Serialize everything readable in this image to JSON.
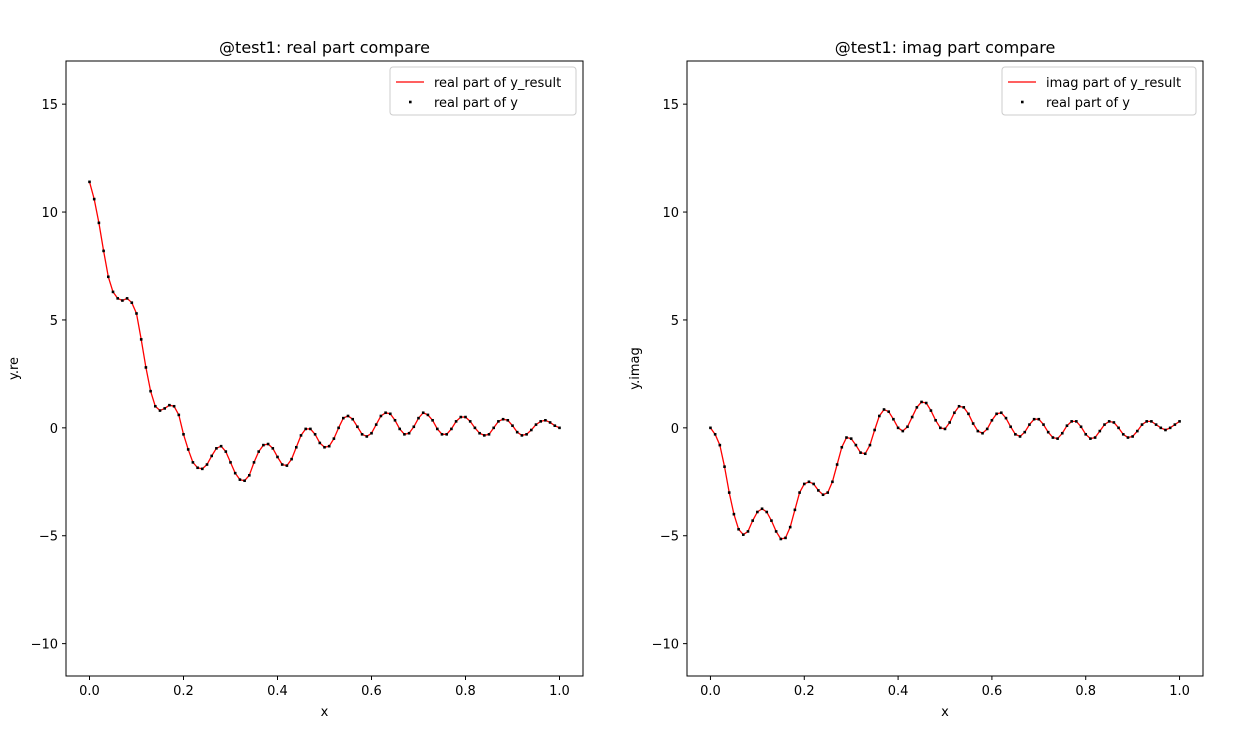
{
  "chart_data": [
    {
      "type": "line",
      "title": "@test1: real part compare",
      "xlabel": "x",
      "ylabel": "y.re",
      "xlim": [
        -0.05,
        1.05
      ],
      "ylim": [
        -11.5,
        17.0
      ],
      "xticks": [
        0.0,
        0.2,
        0.4,
        0.6,
        0.8,
        1.0
      ],
      "xtick_labels": [
        "0.0",
        "0.2",
        "0.4",
        "0.6",
        "0.8",
        "1.0"
      ],
      "yticks": [
        -10,
        -5,
        0,
        5,
        10,
        15
      ],
      "ytick_labels": [
        "−10",
        "−5",
        "0",
        "5",
        "10",
        "15"
      ],
      "grid": false,
      "legend_position": "top-right",
      "colors": {
        "line": "#ff0000",
        "scatter": "#000000"
      },
      "series": [
        {
          "name": "real part of y_result",
          "kind": "line",
          "x": [
            0.0,
            0.01,
            0.02,
            0.03,
            0.04,
            0.05,
            0.06,
            0.07,
            0.08,
            0.09,
            0.1,
            0.11,
            0.12,
            0.13,
            0.14,
            0.15,
            0.16,
            0.17,
            0.18,
            0.19,
            0.2,
            0.21,
            0.22,
            0.23,
            0.24,
            0.25,
            0.26,
            0.27,
            0.28,
            0.29,
            0.3,
            0.31,
            0.32,
            0.33,
            0.34,
            0.35,
            0.36,
            0.37,
            0.38,
            0.39,
            0.4,
            0.41,
            0.42,
            0.43,
            0.44,
            0.45,
            0.46,
            0.47,
            0.48,
            0.49,
            0.5,
            0.51,
            0.52,
            0.53,
            0.54,
            0.55,
            0.56,
            0.57,
            0.58,
            0.59,
            0.6,
            0.61,
            0.62,
            0.63,
            0.64,
            0.65,
            0.66,
            0.67,
            0.68,
            0.69,
            0.7,
            0.71,
            0.72,
            0.73,
            0.74,
            0.75,
            0.76,
            0.77,
            0.78,
            0.79,
            0.8,
            0.81,
            0.82,
            0.83,
            0.84,
            0.85,
            0.86,
            0.87,
            0.88,
            0.89,
            0.9,
            0.91,
            0.92,
            0.93,
            0.94,
            0.95,
            0.96,
            0.97,
            0.98,
            0.99,
            1.0
          ],
          "y": [
            11.4,
            10.6,
            9.5,
            8.2,
            7.0,
            6.3,
            6.0,
            5.9,
            6.0,
            5.8,
            5.3,
            4.1,
            2.8,
            1.7,
            1.0,
            0.8,
            0.9,
            1.05,
            1.0,
            0.6,
            -0.3,
            -1.0,
            -1.6,
            -1.85,
            -1.9,
            -1.7,
            -1.3,
            -0.95,
            -0.85,
            -1.1,
            -1.6,
            -2.1,
            -2.4,
            -2.45,
            -2.2,
            -1.6,
            -1.1,
            -0.8,
            -0.75,
            -0.95,
            -1.35,
            -1.7,
            -1.75,
            -1.45,
            -0.9,
            -0.35,
            -0.05,
            -0.05,
            -0.3,
            -0.7,
            -0.9,
            -0.85,
            -0.5,
            0.0,
            0.45,
            0.55,
            0.4,
            0.05,
            -0.3,
            -0.4,
            -0.25,
            0.15,
            0.55,
            0.7,
            0.65,
            0.35,
            -0.05,
            -0.3,
            -0.25,
            0.05,
            0.45,
            0.7,
            0.6,
            0.35,
            -0.05,
            -0.3,
            -0.3,
            -0.05,
            0.3,
            0.5,
            0.5,
            0.3,
            0.0,
            -0.25,
            -0.35,
            -0.3,
            0.0,
            0.3,
            0.4,
            0.35,
            0.1,
            -0.2,
            -0.35,
            -0.3,
            -0.1,
            0.15,
            0.3,
            0.35,
            0.25,
            0.1,
            0.0
          ]
        },
        {
          "name": "real part of y",
          "kind": "scatter",
          "x": [
            0.0,
            0.01,
            0.02,
            0.03,
            0.04,
            0.05,
            0.06,
            0.07,
            0.08,
            0.09,
            0.1,
            0.11,
            0.12,
            0.13,
            0.14,
            0.15,
            0.16,
            0.17,
            0.18,
            0.19,
            0.2,
            0.21,
            0.22,
            0.23,
            0.24,
            0.25,
            0.26,
            0.27,
            0.28,
            0.29,
            0.3,
            0.31,
            0.32,
            0.33,
            0.34,
            0.35,
            0.36,
            0.37,
            0.38,
            0.39,
            0.4,
            0.41,
            0.42,
            0.43,
            0.44,
            0.45,
            0.46,
            0.47,
            0.48,
            0.49,
            0.5,
            0.51,
            0.52,
            0.53,
            0.54,
            0.55,
            0.56,
            0.57,
            0.58,
            0.59,
            0.6,
            0.61,
            0.62,
            0.63,
            0.64,
            0.65,
            0.66,
            0.67,
            0.68,
            0.69,
            0.7,
            0.71,
            0.72,
            0.73,
            0.74,
            0.75,
            0.76,
            0.77,
            0.78,
            0.79,
            0.8,
            0.81,
            0.82,
            0.83,
            0.84,
            0.85,
            0.86,
            0.87,
            0.88,
            0.89,
            0.9,
            0.91,
            0.92,
            0.93,
            0.94,
            0.95,
            0.96,
            0.97,
            0.98,
            0.99,
            1.0
          ],
          "y": [
            11.4,
            10.6,
            9.5,
            8.2,
            7.0,
            6.3,
            6.0,
            5.9,
            6.0,
            5.8,
            5.3,
            4.1,
            2.8,
            1.7,
            1.0,
            0.8,
            0.9,
            1.05,
            1.0,
            0.6,
            -0.3,
            -1.0,
            -1.6,
            -1.85,
            -1.9,
            -1.7,
            -1.3,
            -0.95,
            -0.85,
            -1.1,
            -1.6,
            -2.1,
            -2.4,
            -2.45,
            -2.2,
            -1.6,
            -1.1,
            -0.8,
            -0.75,
            -0.95,
            -1.35,
            -1.7,
            -1.75,
            -1.45,
            -0.9,
            -0.35,
            -0.05,
            -0.05,
            -0.3,
            -0.7,
            -0.9,
            -0.85,
            -0.5,
            0.0,
            0.45,
            0.55,
            0.4,
            0.05,
            -0.3,
            -0.4,
            -0.25,
            0.15,
            0.55,
            0.7,
            0.65,
            0.35,
            -0.05,
            -0.3,
            -0.25,
            0.05,
            0.45,
            0.7,
            0.6,
            0.35,
            -0.05,
            -0.3,
            -0.3,
            -0.05,
            0.3,
            0.5,
            0.5,
            0.3,
            0.0,
            -0.25,
            -0.35,
            -0.3,
            0.0,
            0.3,
            0.4,
            0.35,
            0.1,
            -0.2,
            -0.35,
            -0.3,
            -0.1,
            0.15,
            0.3,
            0.35,
            0.25,
            0.1,
            0.0
          ]
        }
      ]
    },
    {
      "type": "line",
      "title": "@test1: imag part compare",
      "xlabel": "x",
      "ylabel": "y.imag",
      "xlim": [
        -0.05,
        1.05
      ],
      "ylim": [
        -11.5,
        17.0
      ],
      "xticks": [
        0.0,
        0.2,
        0.4,
        0.6,
        0.8,
        1.0
      ],
      "xtick_labels": [
        "0.0",
        "0.2",
        "0.4",
        "0.6",
        "0.8",
        "1.0"
      ],
      "yticks": [
        -10,
        -5,
        0,
        5,
        10,
        15
      ],
      "ytick_labels": [
        "−10",
        "−5",
        "0",
        "5",
        "10",
        "15"
      ],
      "grid": false,
      "legend_position": "top-right",
      "colors": {
        "line": "#ff0000",
        "scatter": "#000000"
      },
      "series": [
        {
          "name": "imag part of y_result",
          "kind": "line",
          "x": [
            0.0,
            0.01,
            0.02,
            0.03,
            0.04,
            0.05,
            0.06,
            0.07,
            0.08,
            0.09,
            0.1,
            0.11,
            0.12,
            0.13,
            0.14,
            0.15,
            0.16,
            0.17,
            0.18,
            0.19,
            0.2,
            0.21,
            0.22,
            0.23,
            0.24,
            0.25,
            0.26,
            0.27,
            0.28,
            0.29,
            0.3,
            0.31,
            0.32,
            0.33,
            0.34,
            0.35,
            0.36,
            0.37,
            0.38,
            0.39,
            0.4,
            0.41,
            0.42,
            0.43,
            0.44,
            0.45,
            0.46,
            0.47,
            0.48,
            0.49,
            0.5,
            0.51,
            0.52,
            0.53,
            0.54,
            0.55,
            0.56,
            0.57,
            0.58,
            0.59,
            0.6,
            0.61,
            0.62,
            0.63,
            0.64,
            0.65,
            0.66,
            0.67,
            0.68,
            0.69,
            0.7,
            0.71,
            0.72,
            0.73,
            0.74,
            0.75,
            0.76,
            0.77,
            0.78,
            0.79,
            0.8,
            0.81,
            0.82,
            0.83,
            0.84,
            0.85,
            0.86,
            0.87,
            0.88,
            0.89,
            0.9,
            0.91,
            0.92,
            0.93,
            0.94,
            0.95,
            0.96,
            0.97,
            0.98,
            0.99,
            1.0
          ],
          "y": [
            0.0,
            -0.3,
            -0.8,
            -1.8,
            -3.0,
            -4.0,
            -4.7,
            -4.95,
            -4.8,
            -4.3,
            -3.9,
            -3.75,
            -3.9,
            -4.3,
            -4.8,
            -5.15,
            -5.1,
            -4.6,
            -3.8,
            -3.0,
            -2.6,
            -2.5,
            -2.6,
            -2.9,
            -3.1,
            -3.0,
            -2.5,
            -1.7,
            -0.9,
            -0.45,
            -0.5,
            -0.8,
            -1.15,
            -1.2,
            -0.8,
            -0.1,
            0.55,
            0.85,
            0.75,
            0.4,
            0.0,
            -0.15,
            0.05,
            0.5,
            0.95,
            1.2,
            1.15,
            0.8,
            0.35,
            0.0,
            -0.05,
            0.25,
            0.7,
            1.0,
            0.95,
            0.65,
            0.2,
            -0.15,
            -0.25,
            -0.05,
            0.35,
            0.65,
            0.7,
            0.45,
            0.05,
            -0.3,
            -0.4,
            -0.2,
            0.15,
            0.4,
            0.4,
            0.15,
            -0.2,
            -0.45,
            -0.5,
            -0.25,
            0.1,
            0.3,
            0.3,
            0.05,
            -0.3,
            -0.5,
            -0.45,
            -0.15,
            0.15,
            0.3,
            0.25,
            0.0,
            -0.3,
            -0.45,
            -0.4,
            -0.15,
            0.15,
            0.3,
            0.3,
            0.15,
            0.0,
            -0.1,
            0.0,
            0.15,
            0.3
          ]
        },
        {
          "name": "real part of y",
          "kind": "scatter",
          "x": [
            0.0,
            0.01,
            0.02,
            0.03,
            0.04,
            0.05,
            0.06,
            0.07,
            0.08,
            0.09,
            0.1,
            0.11,
            0.12,
            0.13,
            0.14,
            0.15,
            0.16,
            0.17,
            0.18,
            0.19,
            0.2,
            0.21,
            0.22,
            0.23,
            0.24,
            0.25,
            0.26,
            0.27,
            0.28,
            0.29,
            0.3,
            0.31,
            0.32,
            0.33,
            0.34,
            0.35,
            0.36,
            0.37,
            0.38,
            0.39,
            0.4,
            0.41,
            0.42,
            0.43,
            0.44,
            0.45,
            0.46,
            0.47,
            0.48,
            0.49,
            0.5,
            0.51,
            0.52,
            0.53,
            0.54,
            0.55,
            0.56,
            0.57,
            0.58,
            0.59,
            0.6,
            0.61,
            0.62,
            0.63,
            0.64,
            0.65,
            0.66,
            0.67,
            0.68,
            0.69,
            0.7,
            0.71,
            0.72,
            0.73,
            0.74,
            0.75,
            0.76,
            0.77,
            0.78,
            0.79,
            0.8,
            0.81,
            0.82,
            0.83,
            0.84,
            0.85,
            0.86,
            0.87,
            0.88,
            0.89,
            0.9,
            0.91,
            0.92,
            0.93,
            0.94,
            0.95,
            0.96,
            0.97,
            0.98,
            0.99,
            1.0
          ],
          "y": [
            0.0,
            -0.3,
            -0.8,
            -1.8,
            -3.0,
            -4.0,
            -4.7,
            -4.95,
            -4.8,
            -4.3,
            -3.9,
            -3.75,
            -3.9,
            -4.3,
            -4.8,
            -5.15,
            -5.1,
            -4.6,
            -3.8,
            -3.0,
            -2.6,
            -2.5,
            -2.6,
            -2.9,
            -3.1,
            -3.0,
            -2.5,
            -1.7,
            -0.9,
            -0.45,
            -0.5,
            -0.8,
            -1.15,
            -1.2,
            -0.8,
            -0.1,
            0.55,
            0.85,
            0.75,
            0.4,
            0.0,
            -0.15,
            0.05,
            0.5,
            0.95,
            1.2,
            1.15,
            0.8,
            0.35,
            0.0,
            -0.05,
            0.25,
            0.7,
            1.0,
            0.95,
            0.65,
            0.2,
            -0.15,
            -0.25,
            -0.05,
            0.35,
            0.65,
            0.7,
            0.45,
            0.05,
            -0.3,
            -0.4,
            -0.2,
            0.15,
            0.4,
            0.4,
            0.15,
            -0.2,
            -0.45,
            -0.5,
            -0.25,
            0.1,
            0.3,
            0.3,
            0.05,
            -0.3,
            -0.5,
            -0.45,
            -0.15,
            0.15,
            0.3,
            0.25,
            0.0,
            -0.3,
            -0.45,
            -0.4,
            -0.15,
            0.15,
            0.3,
            0.3,
            0.15,
            0.0,
            -0.1,
            0.0,
            0.15,
            0.3
          ]
        }
      ]
    }
  ]
}
